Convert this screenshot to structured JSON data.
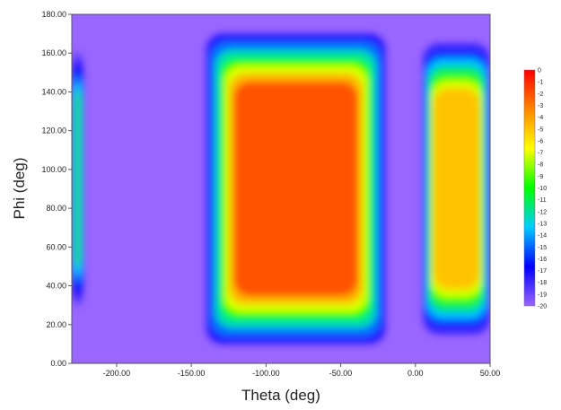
{
  "chart_data": {
    "type": "heatmap",
    "title": "",
    "xlabel": "Theta (deg)",
    "ylabel": "Phi (deg)",
    "xlim": [
      -230,
      50
    ],
    "ylim": [
      0,
      180
    ],
    "x_ticks": [
      "-200.00",
      "-150.00",
      "-100.00",
      "-50.00",
      "0.00",
      "50.00"
    ],
    "x_tick_values": [
      -200,
      -150,
      -100,
      -50,
      0,
      50
    ],
    "y_ticks": [
      "0.00",
      "20.00",
      "40.00",
      "60.00",
      "80.00",
      "100.00",
      "120.00",
      "140.00",
      "160.00",
      "180.00"
    ],
    "y_tick_values": [
      0,
      20,
      40,
      60,
      80,
      100,
      120,
      140,
      160,
      180
    ],
    "colorbar": {
      "min": -20,
      "max": 0,
      "labels": [
        "0",
        "-1",
        "-2",
        "-3",
        "-4",
        "-5",
        "-6",
        "-7",
        "-8",
        "-9",
        "-10",
        "-11",
        "-12",
        "-13",
        "-14",
        "-15",
        "-16",
        "-17",
        "-18",
        "-19",
        "-20"
      ],
      "colors": [
        "#9966ff",
        "#0000ff",
        "#00ccff",
        "#00ff00",
        "#ffff00",
        "#ff8800",
        "#ff0000"
      ]
    },
    "background_level": -20,
    "regions": [
      {
        "theta": [
          -230,
          -222
        ],
        "phi": [
          30,
          160
        ],
        "peak_level": -12
      },
      {
        "theta": [
          -140,
          -20
        ],
        "phi": [
          10,
          170
        ],
        "peak_level": -2
      },
      {
        "theta": [
          5,
          50
        ],
        "phi": [
          15,
          165
        ],
        "peak_level": -5
      }
    ],
    "grid": false,
    "legend": "colorbar-right"
  }
}
